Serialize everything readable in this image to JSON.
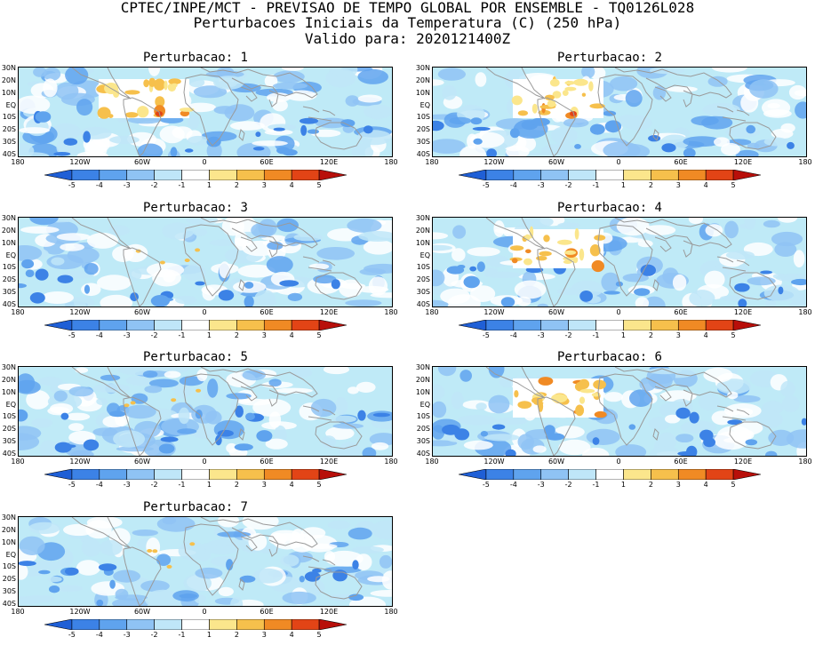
{
  "header": {
    "line1": "CPTEC/INPE/MCT - PREVISAO DE TEMPO GLOBAL POR ENSEMBLE - TQ0126L028",
    "line2": "Perturbacoes Iniciais da Temperatura (C) (250 hPa)",
    "line3": "Valido para: 2020121400Z"
  },
  "panels": [
    {
      "title": "Perturbacao: 1"
    },
    {
      "title": "Perturbacao: 2"
    },
    {
      "title": "Perturbacao: 3"
    },
    {
      "title": "Perturbacao: 4"
    },
    {
      "title": "Perturbacao: 5"
    },
    {
      "title": "Perturbacao: 6"
    },
    {
      "title": "Perturbacao: 7"
    }
  ],
  "lat_labels": [
    "30N",
    "20N",
    "10N",
    "EQ",
    "10S",
    "20S",
    "30S",
    "40S"
  ],
  "lon_labels": [
    "180",
    "120W",
    "60W",
    "0",
    "60E",
    "120E",
    "180"
  ],
  "colorbar": {
    "labels": [
      "-5",
      "-4",
      "-3",
      "-2",
      "-1",
      "1",
      "2",
      "3",
      "4",
      "5"
    ],
    "colors": [
      "#1f5fd6",
      "#3c82e6",
      "#5fa3ee",
      "#8fc3f4",
      "#bfe6f8",
      "#ffffff",
      "#fbe68c",
      "#f6c04c",
      "#f08a24",
      "#e24416",
      "#b80f0a"
    ]
  }
}
